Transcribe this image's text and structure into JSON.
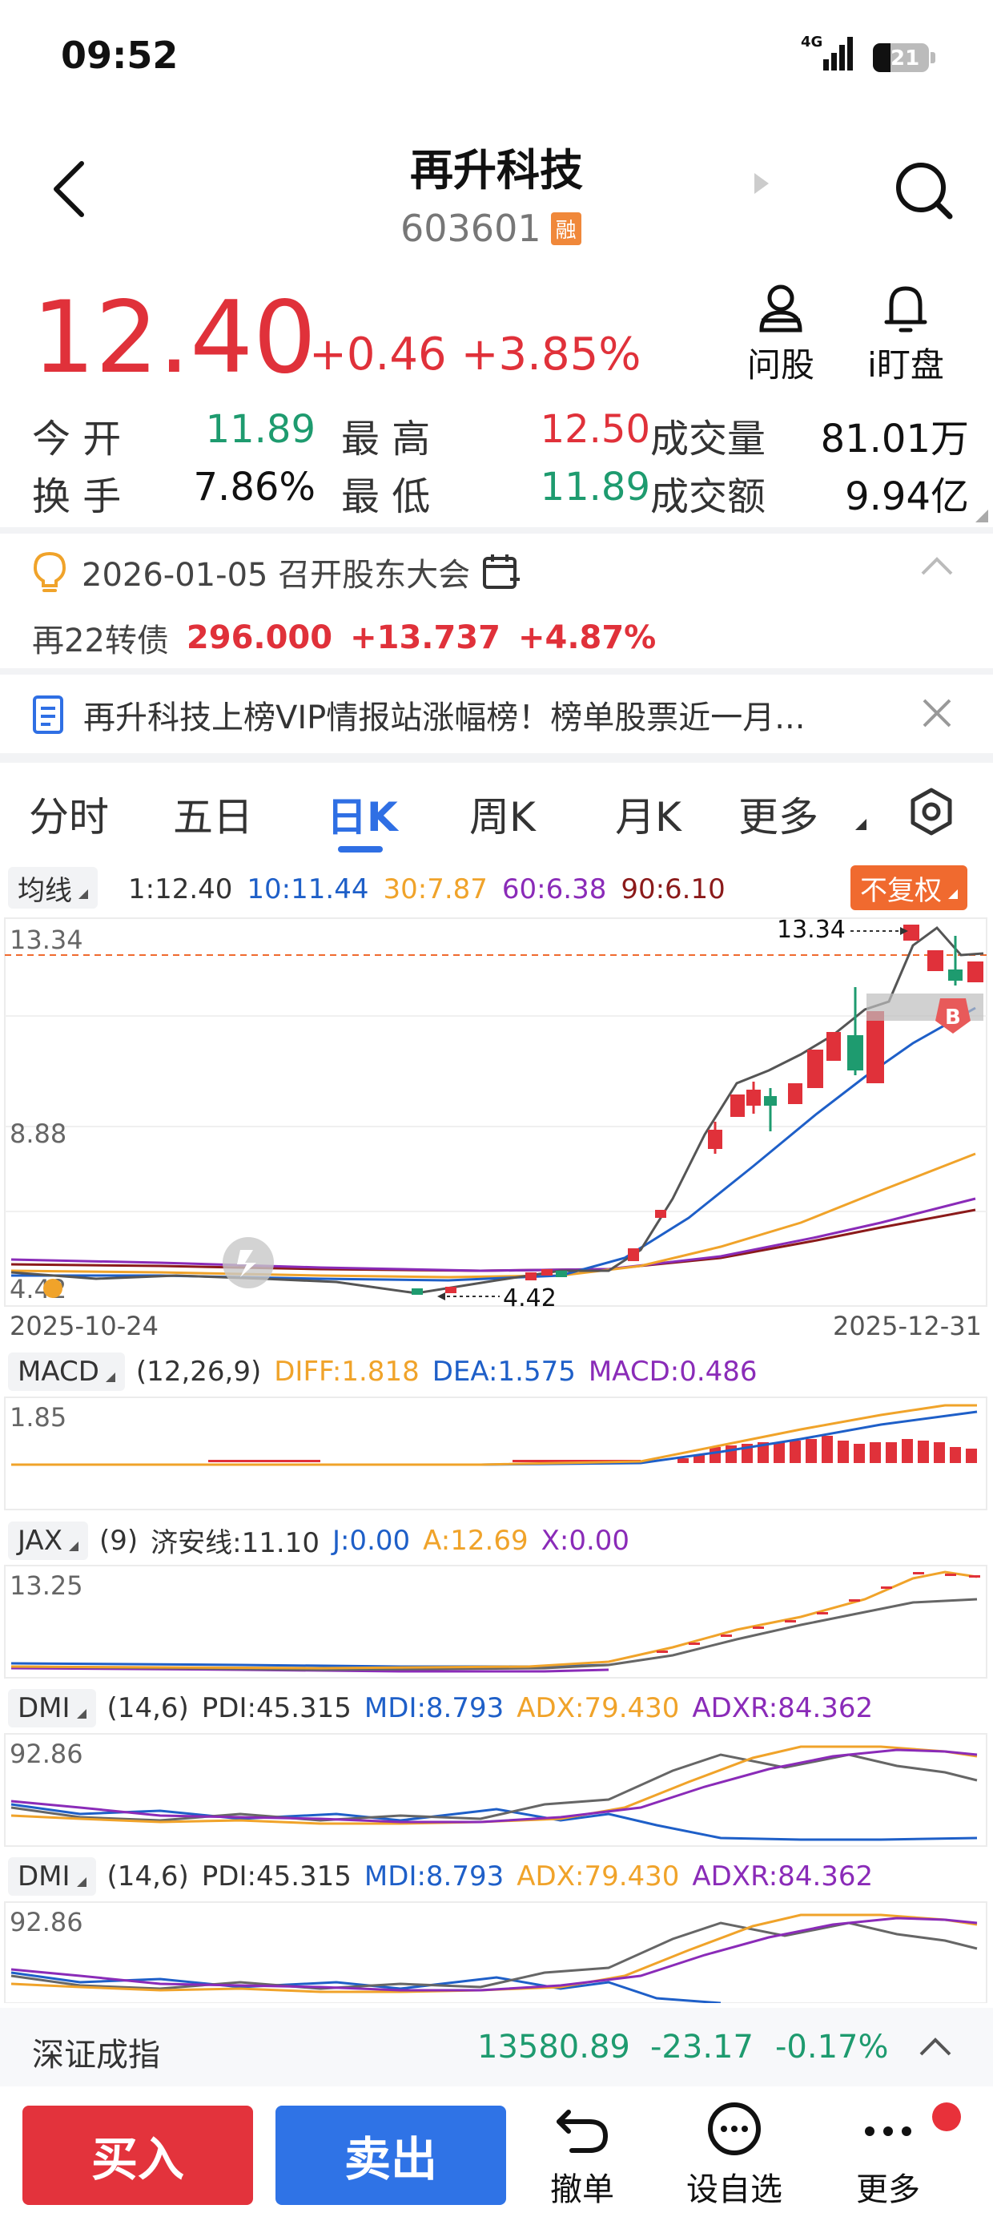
{
  "status_bar": {
    "time": "09:52",
    "network": "4G",
    "battery": "21"
  },
  "header": {
    "title": "再升科技",
    "code": "603601",
    "badge": "融"
  },
  "quote": {
    "price": "12.40",
    "change": "+0.46",
    "change_pct": "+3.85%",
    "actions": [
      {
        "label": "问股",
        "icon": "person-icon"
      },
      {
        "label": "i盯盘",
        "icon": "bell-icon"
      }
    ],
    "stats": [
      {
        "label": "今 开",
        "value": "11.89",
        "tone": "green"
      },
      {
        "label": "最 高",
        "value": "12.50",
        "tone": "red"
      },
      {
        "label": "成交量",
        "value": "81.01万",
        "tone": "black"
      },
      {
        "label": "换 手",
        "value": "7.86%",
        "tone": "black"
      },
      {
        "label": "最 低",
        "value": "11.89",
        "tone": "green"
      },
      {
        "label": "成交额",
        "value": "9.94亿",
        "tone": "black"
      }
    ]
  },
  "event": {
    "text": "2026-01-05 召开股东大会"
  },
  "bond": {
    "name": "再22转债",
    "price": "296.000",
    "change": "+13.737",
    "pct": "+4.87%"
  },
  "news": {
    "text": "再升科技上榜VIP情报站涨幅榜！榜单股票近一月..."
  },
  "tabs": [
    {
      "label": "分时",
      "active": false
    },
    {
      "label": "五日",
      "active": false
    },
    {
      "label": "日K",
      "active": true
    },
    {
      "label": "周K",
      "active": false
    },
    {
      "label": "月K",
      "active": false
    },
    {
      "label": "更多",
      "active": false
    }
  ],
  "ma_legend": {
    "selector": "均线",
    "items": [
      {
        "text": "1:12.40",
        "color": "#333333"
      },
      {
        "text": "10:11.44",
        "color": "#1E5FC8"
      },
      {
        "text": "30:7.87",
        "color": "#F0A32A"
      },
      {
        "text": "60:6.38",
        "color": "#8A2BB8"
      },
      {
        "text": "90:6.10",
        "color": "#8B1A1A"
      }
    ],
    "adjust": "不复权"
  },
  "kline": {
    "y_labels": [
      "13.34",
      "8.88",
      "4.42"
    ],
    "high_marker": "13.34",
    "low_marker": "4.42",
    "start_date": "2025-10-24",
    "end_date": "2025-12-31",
    "b_marker": "B"
  },
  "macd": {
    "name": "MACD",
    "params": "(12,26,9)",
    "items": [
      {
        "text": "DIFF:1.818",
        "color": "#F0A32A"
      },
      {
        "text": "DEA:1.575",
        "color": "#1E5FC8"
      },
      {
        "text": "MACD:0.486",
        "color": "#8A2BB8"
      }
    ],
    "y_label": "1.85"
  },
  "jax": {
    "name": "JAX",
    "params": "(9)",
    "items": [
      {
        "text": "济安线:11.10",
        "color": "#333333"
      },
      {
        "text": "J:0.00",
        "color": "#1E5FC8"
      },
      {
        "text": "A:12.69",
        "color": "#F0A32A"
      },
      {
        "text": "X:0.00",
        "color": "#8A2BB8"
      }
    ],
    "y_label": "13.25"
  },
  "dmi": {
    "name": "DMI",
    "params": "(14,6)",
    "items": [
      {
        "text": "PDI:45.315",
        "color": "#333333"
      },
      {
        "text": "MDI:8.793",
        "color": "#1E5FC8"
      },
      {
        "text": "ADX:79.430",
        "color": "#F0A32A"
      },
      {
        "text": "ADXR:84.362",
        "color": "#8A2BB8"
      }
    ],
    "y_label": "92.86"
  },
  "index_bar": {
    "name": "深证成指",
    "value": "13580.89",
    "change": "-23.17",
    "pct": "-0.17%"
  },
  "bottom_bar": {
    "buy": "买入",
    "sell": "卖出",
    "cancel": "撤单",
    "watchlist": "设自选",
    "more": "更多"
  },
  "colors": {
    "up": "#E0313A",
    "down": "#1E9B6F",
    "accent": "#2F6FE4",
    "adjust_bg": "#F06A2F"
  }
}
